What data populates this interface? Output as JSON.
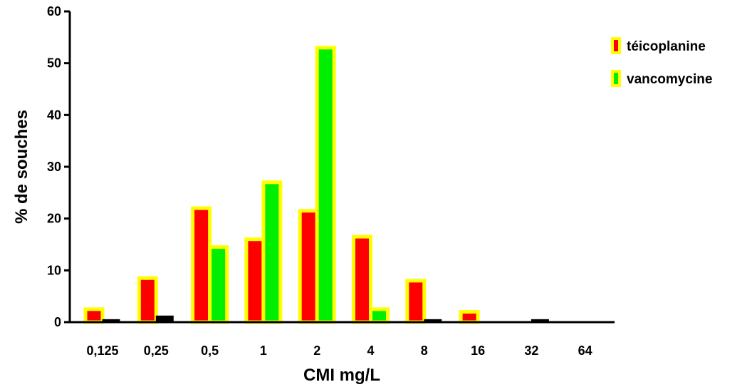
{
  "chart_data": {
    "type": "bar",
    "title": "",
    "xlabel": "CMI mg/L",
    "ylabel": "% de souches",
    "ylim": [
      0,
      60
    ],
    "yticks": [
      "0",
      "10",
      "20",
      "30",
      "40",
      "50",
      "60"
    ],
    "categories": [
      "0,125",
      "0,25",
      "0,5",
      "1",
      "2",
      "4",
      "8",
      "16",
      "32",
      "64"
    ],
    "series": [
      {
        "name": "téicoplanine",
        "values": [
          2.5,
          8.5,
          22,
          16,
          21.5,
          16.5,
          8,
          2,
          0,
          0
        ],
        "color": "#ff0000"
      },
      {
        "name": "vancomycine",
        "values": [
          0.5,
          1.2,
          14.5,
          27,
          53,
          2.5,
          0.5,
          0,
          0.5,
          0
        ],
        "color": "#00ee00"
      }
    ],
    "bar_outline_color": "#ffff00",
    "small_bar_color": "#000000",
    "grid": false,
    "legend_position": "top-right"
  }
}
